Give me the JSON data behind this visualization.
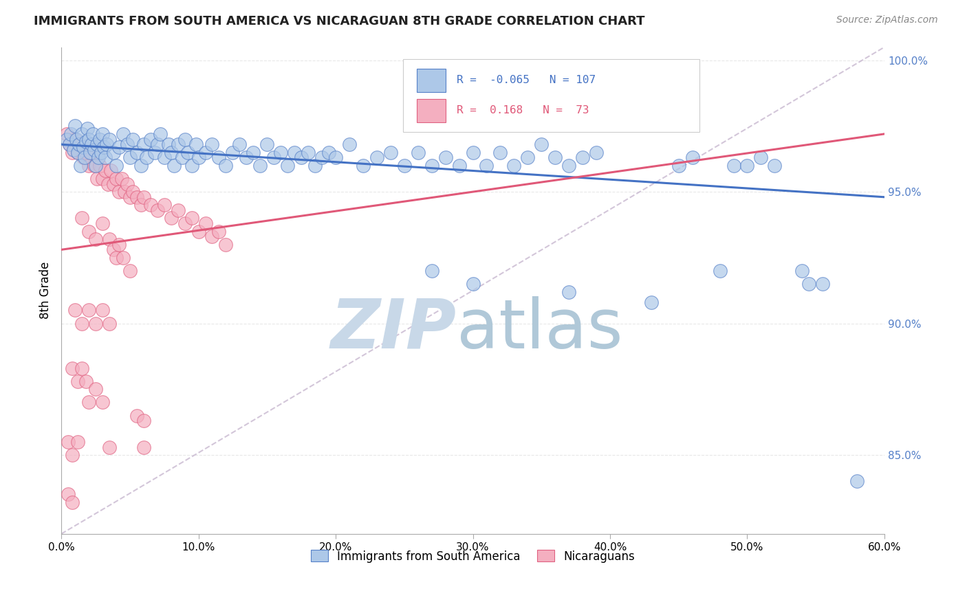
{
  "title": "IMMIGRANTS FROM SOUTH AMERICA VS NICARAGUAN 8TH GRADE CORRELATION CHART",
  "source_text": "Source: ZipAtlas.com",
  "xlabel": "",
  "ylabel": "8th Grade",
  "legend_labels": [
    "Immigrants from South America",
    "Nicaraguans"
  ],
  "r_blue": -0.065,
  "n_blue": 107,
  "r_pink": 0.168,
  "n_pink": 73,
  "xlim": [
    0.0,
    0.6
  ],
  "ylim": [
    0.82,
    1.005
  ],
  "xtick_labels": [
    "0.0%",
    "",
    "",
    "",
    "",
    "",
    "10.0%",
    "",
    "",
    "",
    "",
    "",
    "20.0%",
    "",
    "",
    "",
    "",
    "",
    "30.0%",
    "",
    "",
    "",
    "",
    "",
    "40.0%",
    "",
    "",
    "",
    "",
    "",
    "50.0%",
    "",
    "",
    "",
    "",
    "",
    "60.0%"
  ],
  "xtick_vals": [
    0.0,
    0.1,
    0.2,
    0.3,
    0.4,
    0.5,
    0.6
  ],
  "xtick_display": [
    "0.0%",
    "10.0%",
    "20.0%",
    "30.0%",
    "40.0%",
    "50.0%",
    "60.0%"
  ],
  "ytick_labels": [
    "100.0%",
    "95.0%",
    "90.0%",
    "85.0%"
  ],
  "ytick_vals": [
    1.0,
    0.95,
    0.9,
    0.85
  ],
  "blue_color": "#adc8e8",
  "pink_color": "#f4afc0",
  "blue_edge_color": "#5580c8",
  "pink_edge_color": "#e06080",
  "blue_line_color": "#4472c4",
  "pink_line_color": "#e05878",
  "ref_line_color": "#c8b8d0",
  "watermark_zip_color": "#c8d8e8",
  "watermark_atlas_color": "#b8ccd8",
  "grid_color": "#e8e8e8",
  "ytick_color": "#5580c8",
  "scatter_blue": [
    [
      0.004,
      0.97
    ],
    [
      0.006,
      0.968
    ],
    [
      0.007,
      0.972
    ],
    [
      0.009,
      0.966
    ],
    [
      0.01,
      0.975
    ],
    [
      0.011,
      0.97
    ],
    [
      0.012,
      0.965
    ],
    [
      0.013,
      0.968
    ],
    [
      0.014,
      0.96
    ],
    [
      0.015,
      0.972
    ],
    [
      0.016,
      0.967
    ],
    [
      0.017,
      0.963
    ],
    [
      0.018,
      0.969
    ],
    [
      0.019,
      0.974
    ],
    [
      0.02,
      0.97
    ],
    [
      0.021,
      0.965
    ],
    [
      0.022,
      0.968
    ],
    [
      0.023,
      0.972
    ],
    [
      0.024,
      0.966
    ],
    [
      0.025,
      0.96
    ],
    [
      0.026,
      0.968
    ],
    [
      0.027,
      0.963
    ],
    [
      0.028,
      0.97
    ],
    [
      0.029,
      0.965
    ],
    [
      0.03,
      0.972
    ],
    [
      0.031,
      0.967
    ],
    [
      0.032,
      0.963
    ],
    [
      0.033,
      0.968
    ],
    [
      0.035,
      0.97
    ],
    [
      0.038,
      0.965
    ],
    [
      0.04,
      0.96
    ],
    [
      0.042,
      0.967
    ],
    [
      0.045,
      0.972
    ],
    [
      0.048,
      0.968
    ],
    [
      0.05,
      0.963
    ],
    [
      0.052,
      0.97
    ],
    [
      0.055,
      0.965
    ],
    [
      0.058,
      0.96
    ],
    [
      0.06,
      0.968
    ],
    [
      0.062,
      0.963
    ],
    [
      0.065,
      0.97
    ],
    [
      0.068,
      0.965
    ],
    [
      0.07,
      0.968
    ],
    [
      0.072,
      0.972
    ],
    [
      0.075,
      0.963
    ],
    [
      0.078,
      0.968
    ],
    [
      0.08,
      0.965
    ],
    [
      0.082,
      0.96
    ],
    [
      0.085,
      0.968
    ],
    [
      0.088,
      0.963
    ],
    [
      0.09,
      0.97
    ],
    [
      0.092,
      0.965
    ],
    [
      0.095,
      0.96
    ],
    [
      0.098,
      0.968
    ],
    [
      0.1,
      0.963
    ],
    [
      0.105,
      0.965
    ],
    [
      0.11,
      0.968
    ],
    [
      0.115,
      0.963
    ],
    [
      0.12,
      0.96
    ],
    [
      0.125,
      0.965
    ],
    [
      0.13,
      0.968
    ],
    [
      0.135,
      0.963
    ],
    [
      0.14,
      0.965
    ],
    [
      0.145,
      0.96
    ],
    [
      0.15,
      0.968
    ],
    [
      0.155,
      0.963
    ],
    [
      0.16,
      0.965
    ],
    [
      0.165,
      0.96
    ],
    [
      0.17,
      0.965
    ],
    [
      0.175,
      0.963
    ],
    [
      0.18,
      0.965
    ],
    [
      0.185,
      0.96
    ],
    [
      0.19,
      0.963
    ],
    [
      0.195,
      0.965
    ],
    [
      0.2,
      0.963
    ],
    [
      0.21,
      0.968
    ],
    [
      0.22,
      0.96
    ],
    [
      0.23,
      0.963
    ],
    [
      0.24,
      0.965
    ],
    [
      0.25,
      0.96
    ],
    [
      0.26,
      0.965
    ],
    [
      0.27,
      0.96
    ],
    [
      0.28,
      0.963
    ],
    [
      0.29,
      0.96
    ],
    [
      0.3,
      0.965
    ],
    [
      0.31,
      0.96
    ],
    [
      0.32,
      0.965
    ],
    [
      0.33,
      0.96
    ],
    [
      0.34,
      0.963
    ],
    [
      0.35,
      0.968
    ],
    [
      0.36,
      0.963
    ],
    [
      0.37,
      0.96
    ],
    [
      0.38,
      0.963
    ],
    [
      0.39,
      0.965
    ],
    [
      0.27,
      0.92
    ],
    [
      0.3,
      0.915
    ],
    [
      0.37,
      0.912
    ],
    [
      0.43,
      0.908
    ],
    [
      0.45,
      0.96
    ],
    [
      0.46,
      0.963
    ],
    [
      0.48,
      0.92
    ],
    [
      0.49,
      0.96
    ],
    [
      0.5,
      0.96
    ],
    [
      0.51,
      0.963
    ],
    [
      0.52,
      0.96
    ],
    [
      0.54,
      0.92
    ],
    [
      0.545,
      0.915
    ],
    [
      0.555,
      0.915
    ],
    [
      0.58,
      0.84
    ]
  ],
  "scatter_pink": [
    [
      0.004,
      0.972
    ],
    [
      0.006,
      0.968
    ],
    [
      0.008,
      0.965
    ],
    [
      0.01,
      0.97
    ],
    [
      0.012,
      0.965
    ],
    [
      0.014,
      0.968
    ],
    [
      0.016,
      0.963
    ],
    [
      0.018,
      0.965
    ],
    [
      0.02,
      0.96
    ],
    [
      0.022,
      0.965
    ],
    [
      0.024,
      0.96
    ],
    [
      0.026,
      0.955
    ],
    [
      0.028,
      0.96
    ],
    [
      0.03,
      0.955
    ],
    [
      0.032,
      0.958
    ],
    [
      0.034,
      0.953
    ],
    [
      0.036,
      0.958
    ],
    [
      0.038,
      0.953
    ],
    [
      0.04,
      0.955
    ],
    [
      0.042,
      0.95
    ],
    [
      0.044,
      0.955
    ],
    [
      0.046,
      0.95
    ],
    [
      0.048,
      0.953
    ],
    [
      0.05,
      0.948
    ],
    [
      0.052,
      0.95
    ],
    [
      0.055,
      0.948
    ],
    [
      0.058,
      0.945
    ],
    [
      0.06,
      0.948
    ],
    [
      0.065,
      0.945
    ],
    [
      0.07,
      0.943
    ],
    [
      0.075,
      0.945
    ],
    [
      0.08,
      0.94
    ],
    [
      0.085,
      0.943
    ],
    [
      0.09,
      0.938
    ],
    [
      0.095,
      0.94
    ],
    [
      0.1,
      0.935
    ],
    [
      0.105,
      0.938
    ],
    [
      0.11,
      0.933
    ],
    [
      0.115,
      0.935
    ],
    [
      0.12,
      0.93
    ],
    [
      0.015,
      0.94
    ],
    [
      0.02,
      0.935
    ],
    [
      0.025,
      0.932
    ],
    [
      0.03,
      0.938
    ],
    [
      0.035,
      0.932
    ],
    [
      0.038,
      0.928
    ],
    [
      0.04,
      0.925
    ],
    [
      0.042,
      0.93
    ],
    [
      0.045,
      0.925
    ],
    [
      0.05,
      0.92
    ],
    [
      0.01,
      0.905
    ],
    [
      0.015,
      0.9
    ],
    [
      0.02,
      0.905
    ],
    [
      0.025,
      0.9
    ],
    [
      0.03,
      0.905
    ],
    [
      0.035,
      0.9
    ],
    [
      0.008,
      0.883
    ],
    [
      0.012,
      0.878
    ],
    [
      0.015,
      0.883
    ],
    [
      0.018,
      0.878
    ],
    [
      0.02,
      0.87
    ],
    [
      0.025,
      0.875
    ],
    [
      0.005,
      0.855
    ],
    [
      0.008,
      0.85
    ],
    [
      0.012,
      0.855
    ],
    [
      0.005,
      0.835
    ],
    [
      0.008,
      0.832
    ],
    [
      0.03,
      0.87
    ],
    [
      0.055,
      0.865
    ],
    [
      0.06,
      0.863
    ],
    [
      0.035,
      0.853
    ],
    [
      0.06,
      0.853
    ]
  ],
  "blue_trend": [
    0.0,
    0.968,
    0.6,
    0.948
  ],
  "pink_trend": [
    0.0,
    0.928,
    0.6,
    0.972
  ],
  "ref_line": [
    0.0,
    0.82,
    0.6,
    1.005
  ]
}
